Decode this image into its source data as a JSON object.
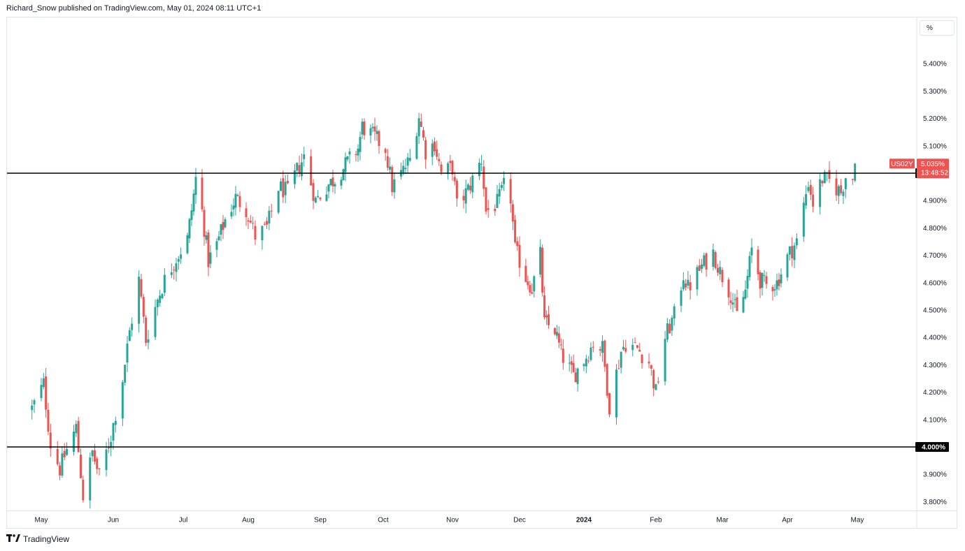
{
  "header": {
    "text": "Richard_Snow published on TradingView.com, May 01, 2024 08:11 UTC+1"
  },
  "footer": {
    "logo_icon": "tradingview-logo-icon",
    "brand": "TradingView"
  },
  "axis": {
    "unit_label": "%"
  },
  "colors": {
    "up": "#26a69a",
    "down": "#ef5350",
    "line": "#000000",
    "grid": "#e0e3eb"
  },
  "symbol_tag": {
    "symbol": "US02Y",
    "price": "5.035%",
    "countdown": "13:48:52"
  },
  "level_labels": [
    "5.000%",
    "4.000%"
  ],
  "chart_data": {
    "type": "candlestick",
    "title": "",
    "xlabel": "",
    "ylabel": "",
    "y_range": [
      3.76,
      5.48
    ],
    "y_ticks": [
      "5.400%",
      "5.300%",
      "5.200%",
      "5.100%",
      "4.900%",
      "4.800%",
      "4.700%",
      "4.600%",
      "4.500%",
      "4.400%",
      "4.300%",
      "4.200%",
      "4.100%",
      "3.900%",
      "3.800%"
    ],
    "y_tick_values": [
      5.4,
      5.3,
      5.2,
      5.1,
      4.9,
      4.8,
      4.7,
      4.6,
      4.5,
      4.4,
      4.3,
      4.2,
      4.1,
      3.9,
      3.8
    ],
    "x_ticks": [
      {
        "label": "May",
        "bold": false
      },
      {
        "label": "Jun",
        "bold": false
      },
      {
        "label": "Jul",
        "bold": false
      },
      {
        "label": "Aug",
        "bold": false
      },
      {
        "label": "Sep",
        "bold": false
      },
      {
        "label": "Oct",
        "bold": false
      },
      {
        "label": "Nov",
        "bold": false
      },
      {
        "label": "Dec",
        "bold": false
      },
      {
        "label": "2024",
        "bold": true
      },
      {
        "label": "Feb",
        "bold": false
      },
      {
        "label": "Mar",
        "bold": false
      },
      {
        "label": "Apr",
        "bold": false
      },
      {
        "label": "May",
        "bold": false
      }
    ],
    "horizontal_levels": [
      5.0,
      4.0
    ],
    "last_price": 5.035,
    "close_path": [
      [
        "2023-04-27",
        4.14
      ],
      [
        "2023-05-02",
        4.23
      ],
      [
        "2023-05-05",
        4.01
      ],
      [
        "2023-05-09",
        3.92
      ],
      [
        "2023-05-12",
        3.99
      ],
      [
        "2023-05-16",
        4.07
      ],
      [
        "2023-05-19",
        3.82
      ],
      [
        "2023-05-23",
        3.98
      ],
      [
        "2023-05-26",
        3.89
      ],
      [
        "2023-05-31",
        4.04
      ],
      [
        "2023-06-05",
        4.25
      ],
      [
        "2023-06-08",
        4.42
      ],
      [
        "2023-06-12",
        4.61
      ],
      [
        "2023-06-15",
        4.39
      ],
      [
        "2023-06-20",
        4.54
      ],
      [
        "2023-06-23",
        4.61
      ],
      [
        "2023-06-28",
        4.69
      ],
      [
        "2023-07-03",
        4.76
      ],
      [
        "2023-07-06",
        4.92
      ],
      [
        "2023-07-07",
        4.98
      ],
      [
        "2023-07-10",
        4.86
      ],
      [
        "2023-07-13",
        4.68
      ],
      [
        "2023-07-17",
        4.74
      ],
      [
        "2023-07-21",
        4.83
      ],
      [
        "2023-07-26",
        4.91
      ],
      [
        "2023-07-31",
        4.87
      ],
      [
        "2023-08-04",
        4.77
      ],
      [
        "2023-08-09",
        4.8
      ],
      [
        "2023-08-14",
        4.95
      ],
      [
        "2023-08-18",
        4.93
      ],
      [
        "2023-08-22",
        5.01
      ],
      [
        "2023-08-25",
        5.06
      ],
      [
        "2023-08-30",
        4.9
      ],
      [
        "2023-09-05",
        4.96
      ],
      [
        "2023-09-08",
        4.98
      ],
      [
        "2023-09-13",
        5.03
      ],
      [
        "2023-09-19",
        5.09
      ],
      [
        "2023-09-21",
        5.17
      ],
      [
        "2023-09-27",
        5.13
      ],
      [
        "2023-10-02",
        5.09
      ],
      [
        "2023-10-05",
        4.95
      ],
      [
        "2023-10-10",
        5.01
      ],
      [
        "2023-10-13",
        5.05
      ],
      [
        "2023-10-17",
        5.21
      ],
      [
        "2023-10-20",
        5.08
      ],
      [
        "2023-10-24",
        5.11
      ],
      [
        "2023-10-27",
        5.0
      ],
      [
        "2023-11-01",
        5.02
      ],
      [
        "2023-11-03",
        4.88
      ],
      [
        "2023-11-08",
        4.94
      ],
      [
        "2023-11-14",
        5.05
      ],
      [
        "2023-11-16",
        4.86
      ],
      [
        "2023-11-21",
        4.89
      ],
      [
        "2023-11-24",
        4.95
      ],
      [
        "2023-11-27",
        4.91
      ],
      [
        "2023-11-29",
        4.72
      ],
      [
        "2023-12-04",
        4.62
      ],
      [
        "2023-12-07",
        4.58
      ],
      [
        "2023-12-11",
        4.7
      ],
      [
        "2023-12-13",
        4.45
      ],
      [
        "2023-12-18",
        4.43
      ],
      [
        "2023-12-21",
        4.34
      ],
      [
        "2023-12-27",
        4.26
      ],
      [
        "2024-01-02",
        4.33
      ],
      [
        "2024-01-05",
        4.38
      ],
      [
        "2024-01-09",
        4.36
      ],
      [
        "2024-01-12",
        4.15
      ],
      [
        "2024-01-17",
        4.35
      ],
      [
        "2024-01-19",
        4.38
      ],
      [
        "2024-01-24",
        4.36
      ],
      [
        "2024-01-29",
        4.31
      ],
      [
        "2024-02-01",
        4.2
      ],
      [
        "2024-02-05",
        4.4
      ],
      [
        "2024-02-09",
        4.48
      ],
      [
        "2024-02-13",
        4.63
      ],
      [
        "2024-02-15",
        4.58
      ],
      [
        "2024-02-21",
        4.66
      ],
      [
        "2024-02-26",
        4.71
      ],
      [
        "2024-02-29",
        4.64
      ],
      [
        "2024-03-05",
        4.56
      ],
      [
        "2024-03-08",
        4.48
      ],
      [
        "2024-03-12",
        4.57
      ],
      [
        "2024-03-15",
        4.72
      ],
      [
        "2024-03-19",
        4.61
      ],
      [
        "2024-03-22",
        4.59
      ],
      [
        "2024-03-27",
        4.6
      ],
      [
        "2024-04-02",
        4.71
      ],
      [
        "2024-04-05",
        4.75
      ],
      [
        "2024-04-10",
        4.97
      ],
      [
        "2024-04-12",
        4.89
      ],
      [
        "2024-04-16",
        4.98
      ],
      [
        "2024-04-19",
        4.97
      ],
      [
        "2024-04-24",
        4.93
      ],
      [
        "2024-04-26",
        4.99
      ],
      [
        "2024-04-29",
        4.98
      ],
      [
        "2024-04-30",
        5.035
      ]
    ]
  }
}
